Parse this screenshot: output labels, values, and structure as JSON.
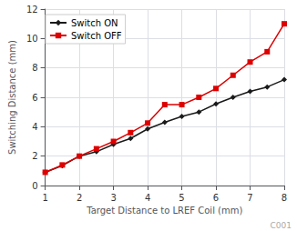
{
  "chart_data": {
    "type": "line",
    "x_label": "Target Distance to LREF Coil (mm)",
    "y_label": "Switching Distance (mm)",
    "x": [
      1.0,
      1.5,
      2.0,
      2.5,
      3.0,
      3.5,
      4.0,
      4.5,
      5.0,
      5.5,
      6.0,
      6.5,
      7.0,
      7.5,
      8.0
    ],
    "series": [
      {
        "name": "Switch ON",
        "color": "#1a1a1a",
        "marker": "diamond",
        "values": [
          0.9,
          1.35,
          2.0,
          2.3,
          2.8,
          3.2,
          3.85,
          4.3,
          4.7,
          5.0,
          5.55,
          6.0,
          6.4,
          6.7,
          7.2
        ]
      },
      {
        "name": "Switch OFF",
        "color": "#dd0000",
        "marker": "square",
        "values": [
          0.9,
          1.4,
          2.0,
          2.5,
          3.0,
          3.6,
          4.25,
          5.5,
          5.5,
          6.0,
          6.6,
          7.5,
          8.4,
          9.1,
          11.0
        ]
      }
    ],
    "xlim": [
      1,
      8
    ],
    "xticks": [
      1,
      2,
      3,
      4,
      5,
      6,
      7,
      8
    ],
    "ylim": [
      0,
      12
    ],
    "yticks": [
      0,
      2,
      4,
      6,
      8,
      10,
      12
    ],
    "grid": true,
    "legend": "upper left",
    "annotations": [
      "C001"
    ]
  }
}
